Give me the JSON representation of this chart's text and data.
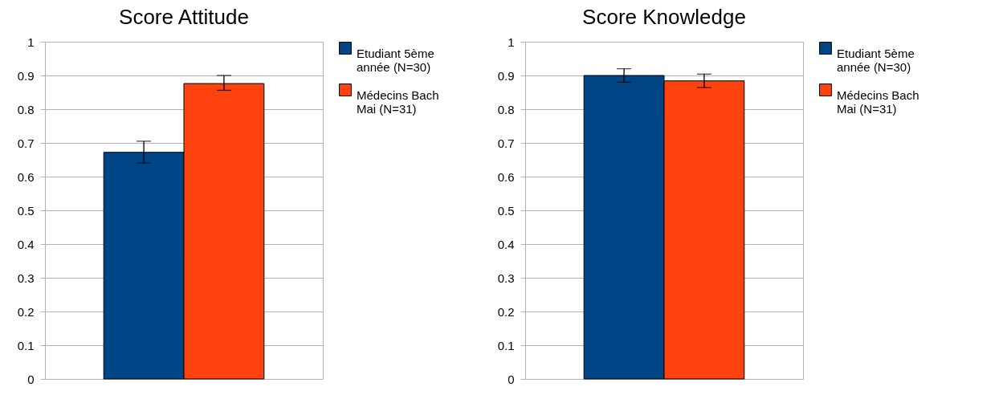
{
  "chart_data": [
    {
      "type": "bar",
      "title": "Score Attitude",
      "categories": [
        null
      ],
      "ylim": [
        0,
        1
      ],
      "yticks": [
        0,
        0.1,
        0.2,
        0.3,
        0.4,
        0.5,
        0.6,
        0.7,
        0.8,
        0.9,
        1
      ],
      "grid": "y",
      "legend": "right",
      "series": [
        {
          "name": "Etudiant 5ème année (N=30)",
          "color": "#004586",
          "values": [
            0.672
          ],
          "errors": [
            [
              0.64,
              0.705
            ]
          ]
        },
        {
          "name": "Médecins Bach Mai (N=31)",
          "color": "#ff420e",
          "values": [
            0.876
          ],
          "errors": [
            [
              0.856,
              0.9
            ]
          ]
        }
      ]
    },
    {
      "type": "bar",
      "title": "Score Knowledge",
      "categories": [
        null
      ],
      "ylim": [
        0,
        1
      ],
      "yticks": [
        0,
        0.1,
        0.2,
        0.3,
        0.4,
        0.5,
        0.6,
        0.7,
        0.8,
        0.9,
        1
      ],
      "grid": "y",
      "legend": "right",
      "series": [
        {
          "name": "Etudiant 5ème année (N=30)",
          "color": "#004586",
          "values": [
            0.9
          ],
          "errors": [
            [
              0.88,
              0.92
            ]
          ]
        },
        {
          "name": "Médecins Bach Mai (N=31)",
          "color": "#ff420e",
          "values": [
            0.884
          ],
          "errors": [
            [
              0.864,
              0.904
            ]
          ]
        }
      ]
    }
  ]
}
